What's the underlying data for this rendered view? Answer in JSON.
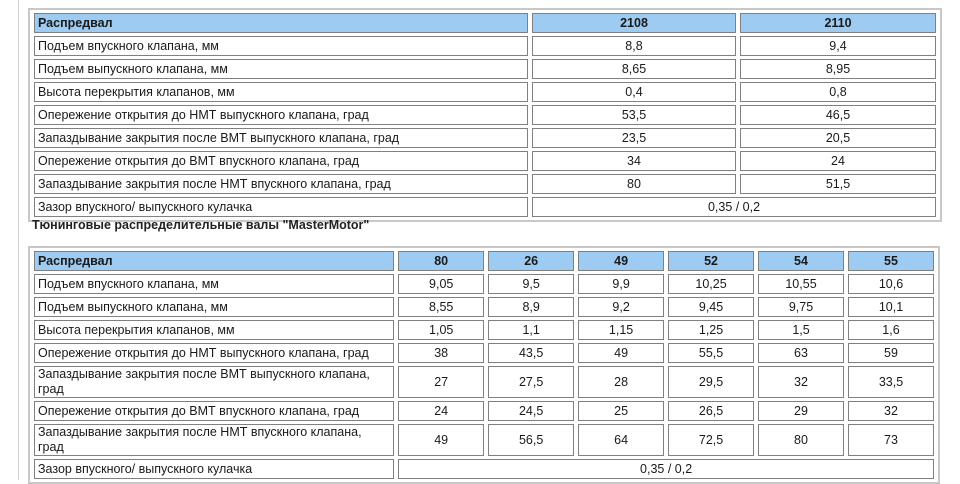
{
  "table1": {
    "headers": [
      "Распредвал",
      "2108",
      "2110"
    ],
    "rows": [
      {
        "label": "Подъем впускного клапана, мм",
        "values": [
          "8,8",
          "9,4"
        ]
      },
      {
        "label": "Подъем выпускного клапана, мм",
        "values": [
          "8,65",
          "8,95"
        ]
      },
      {
        "label": "Высота перекрытия клапанов, мм",
        "values": [
          "0,4",
          "0,8"
        ]
      },
      {
        "label": "Опережение открытия до НМТ выпускного клапана, град",
        "values": [
          "53,5",
          "46,5"
        ]
      },
      {
        "label": "Запаздывание закрытия после ВМТ выпускного клапана, град",
        "values": [
          "23,5",
          "20,5"
        ]
      },
      {
        "label": "Опережение открытия до ВМТ впускного клапана, град",
        "values": [
          "34",
          "24"
        ]
      },
      {
        "label": "Запаздывание закрытия после НМТ впускного клапана, град",
        "values": [
          "80",
          "51,5"
        ]
      },
      {
        "label": "Зазор впускного/ выпускного кулачка",
        "values": [
          "0,35 / 0,2"
        ]
      }
    ]
  },
  "subtitle": "Тюнинговые распределительные валы \"MasterMotor\"",
  "table2": {
    "headers": [
      "Распредвал",
      "80",
      "26",
      "49",
      "52",
      "54",
      "55"
    ],
    "rows": [
      {
        "label": "Подъем впускного клапана, мм",
        "values": [
          "9,05",
          "9,5",
          "9,9",
          "10,25",
          "10,55",
          "10,6"
        ]
      },
      {
        "label": "Подъем выпускного клапана, мм",
        "values": [
          "8,55",
          "8,9",
          "9,2",
          "9,45",
          "9,75",
          "10,1"
        ]
      },
      {
        "label": "Высота перекрытия клапанов, мм",
        "values": [
          "1,05",
          "1,1",
          "1,15",
          "1,25",
          "1,5",
          "1,6"
        ]
      },
      {
        "label": "Опережение открытия до НМТ выпускного клапана, град",
        "values": [
          "38",
          "43,5",
          "49",
          "55,5",
          "63",
          "59"
        ]
      },
      {
        "label": "Запаздывание закрытия после ВМТ выпускного клапана, град",
        "values": [
          "27",
          "27,5",
          "28",
          "29,5",
          "32",
          "33,5"
        ]
      },
      {
        "label": "Опережение открытия до ВМТ впускного клапана, град",
        "values": [
          "24",
          "24,5",
          "25",
          "26,5",
          "29",
          "32"
        ]
      },
      {
        "label": "Запаздывание закрытия после НМТ впускного клапана, град",
        "values": [
          "49",
          "56,5",
          "64",
          "72,5",
          "80",
          "73"
        ]
      },
      {
        "label": "Зазор впускного/ выпускного кулачка",
        "values": [
          "0,35 / 0,2"
        ]
      }
    ]
  },
  "colors": {
    "header_bg": "#9ecbf2",
    "border": "#808080",
    "outer_border": "#c8c8c8"
  }
}
